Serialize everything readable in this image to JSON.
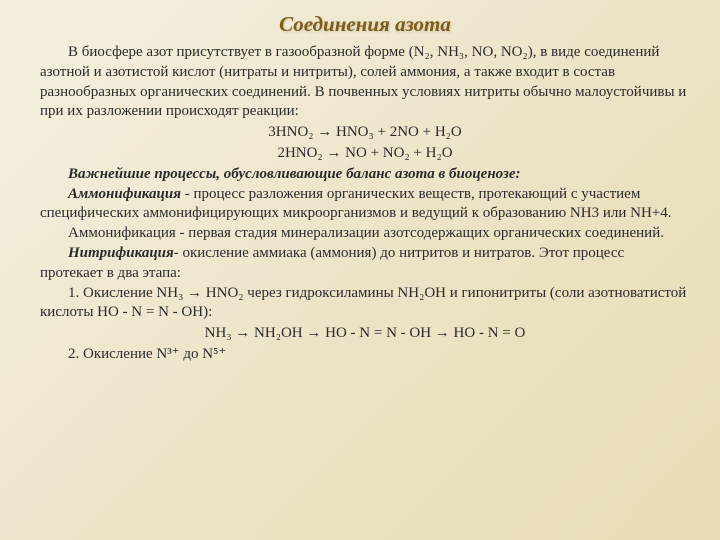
{
  "title": "Соединения азота",
  "p1": "В биосфере азот присутствует в газообразной форме (N₂, NH₃, NO, NO₂), в виде соединений азотной и азотистой кислот (нитраты и нитриты), солей аммония, а также входит в состав разнообразных органических соединений. В почвенных условиях нитриты обычно малоустойчивы и при их разложении происходят реакции:",
  "eq1": "3HNO₂ → HNO₃ + 2NO + H₂O",
  "eq2": "2HNO₂ → NO + NO₂ + H₂O",
  "p2": "Важнейшие процессы, обусловливающие баланс азота в биоценозе:",
  "p3a": "Аммонификация",
  "p3b": " - процесс разложения органических веществ, протекающий с участием специфических аммонифицирующих микроорганизмов и ведущий к образованию NH3 или NH+4.",
  "p4": "Аммонификация - первая стадия минерализации азотсодержащих органических соединений.",
  "p5a": "Нитрификация",
  "p5b": "- окисление аммиака (аммония) до нитритов и нитратов. Этот процесс протекает в два этапа:",
  "n1": "1. Окисление NH₃ → HNO₂ через гидроксиламины NH₂OH и гипонитриты (соли азотноватистой кислоты HO - N = N - OH):",
  "eq3": "NH₃ → NH₂OH → HO - N = N - OH → HO - N = O",
  "n2": "2. Окисление N³⁺ до N⁵⁺",
  "style": {
    "title_color": "#7a5c1e",
    "text_color": "#2a2a2a",
    "bg_gradient_from": "#f5f0e1",
    "bg_gradient_to": "#e8dcb5",
    "title_fontsize": 21,
    "body_fontsize": 15,
    "font_family": "Times New Roman"
  }
}
